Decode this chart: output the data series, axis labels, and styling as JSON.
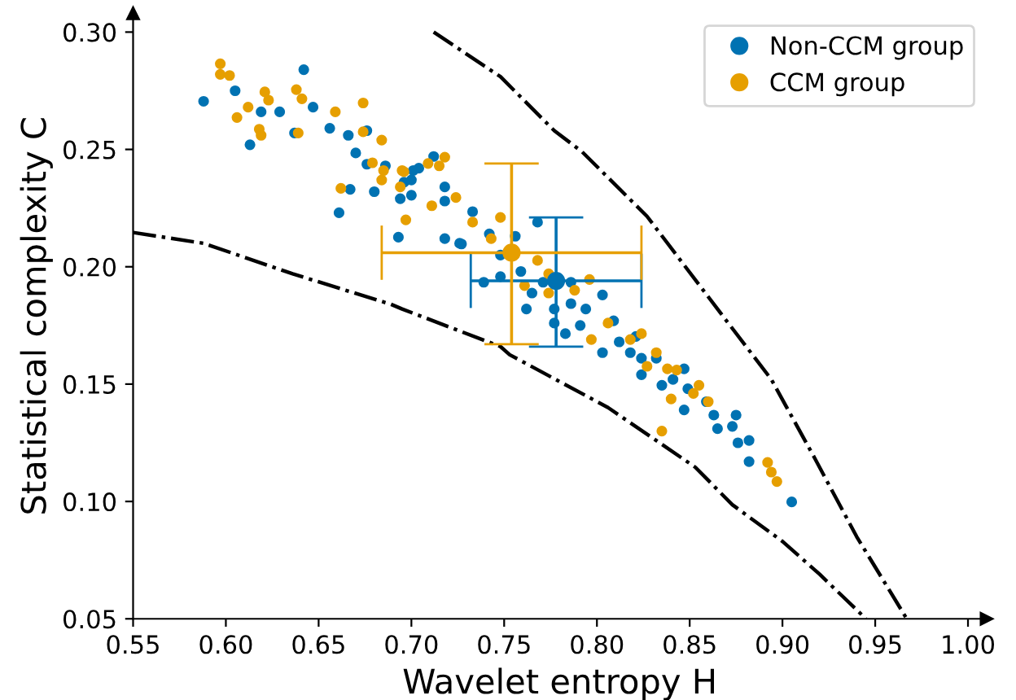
{
  "chart_data": {
    "type": "scatter",
    "xlabel": "Wavelet entropy H",
    "ylabel": "Statistical complexity C",
    "legend": "top right",
    "marker": "circle",
    "grid": false,
    "xlim": [
      0.55,
      1.01
    ],
    "ylim": [
      0.05,
      0.308
    ],
    "xticks": [
      {
        "value": 0.55,
        "label": "0.55"
      },
      {
        "value": 0.6,
        "label": "0.60"
      },
      {
        "value": 0.65,
        "label": "0.65"
      },
      {
        "value": 0.7,
        "label": "0.70"
      },
      {
        "value": 0.75,
        "label": "0.75"
      },
      {
        "value": 0.8,
        "label": "0.80"
      },
      {
        "value": 0.85,
        "label": "0.85"
      },
      {
        "value": 0.9,
        "label": "0.90"
      },
      {
        "value": 0.95,
        "label": "0.95"
      },
      {
        "value": 1.0,
        "label": "1.00"
      }
    ],
    "yticks": [
      {
        "value": 0.05,
        "label": "0.05"
      },
      {
        "value": 0.1,
        "label": "0.10"
      },
      {
        "value": 0.15,
        "label": "0.15"
      },
      {
        "value": 0.2,
        "label": "0.20"
      },
      {
        "value": 0.25,
        "label": "0.25"
      },
      {
        "value": 0.3,
        "label": "0.30"
      }
    ],
    "series": [
      {
        "type": "line",
        "color": "#000000",
        "line_style": "dashdot",
        "marker": "none",
        "x": [
          0.55,
          0.588,
          0.636,
          0.689,
          0.695,
          0.748,
          0.753,
          0.806,
          0.853,
          0.873,
          0.9,
          0.92,
          0.945
        ],
        "values": [
          0.2146,
          0.21,
          0.197,
          0.184,
          0.182,
          0.166,
          0.1625,
          0.14,
          0.1146,
          0.0986,
          0.083,
          0.069,
          0.05
        ]
      },
      {
        "type": "line",
        "color": "#000000",
        "line_style": "dashdot",
        "marker": "none",
        "x": [
          0.712,
          0.748,
          0.777,
          0.792,
          0.827,
          0.865,
          0.894,
          0.917,
          0.94,
          0.967
        ],
        "values": [
          0.3,
          0.281,
          0.258,
          0.249,
          0.2215,
          0.182,
          0.152,
          0.119,
          0.085,
          0.05
        ]
      },
      {
        "name": "Non-CCM group",
        "color": "#0072b2",
        "x": [
          0.588,
          0.642,
          0.605,
          0.619,
          0.613,
          0.629,
          0.637,
          0.647,
          0.656,
          0.666,
          0.676,
          0.67,
          0.676,
          0.661,
          0.667,
          0.68,
          0.686,
          0.693,
          0.694,
          0.7,
          0.7,
          0.704,
          0.712,
          0.718,
          0.726,
          0.696,
          0.718,
          0.733,
          0.727,
          0.742,
          0.748,
          0.739,
          0.759,
          0.765,
          0.777,
          0.777,
          0.786,
          0.794,
          0.791,
          0.803,
          0.809,
          0.812,
          0.821,
          0.824,
          0.832,
          0.841,
          0.847,
          0.849,
          0.859,
          0.847,
          0.863,
          0.865,
          0.875,
          0.873,
          0.876,
          0.882,
          0.882,
          0.905,
          0.803,
          0.756,
          0.768,
          0.718,
          0.701,
          0.786,
          0.783,
          0.824,
          0.835,
          0.818,
          0.771,
          0.748,
          0.762
        ],
        "values": [
          0.2705,
          0.284,
          0.275,
          0.266,
          0.252,
          0.266,
          0.257,
          0.268,
          0.259,
          0.256,
          0.258,
          0.2485,
          0.2437,
          0.223,
          0.233,
          0.232,
          0.243,
          0.2126,
          0.229,
          0.2305,
          0.237,
          0.242,
          0.247,
          0.212,
          0.21,
          0.236,
          0.228,
          0.2235,
          0.2097,
          0.214,
          0.205,
          0.1934,
          0.198,
          0.1888,
          0.182,
          0.176,
          0.1934,
          0.182,
          0.175,
          0.1634,
          0.177,
          0.168,
          0.1703,
          0.161,
          0.161,
          0.152,
          0.1565,
          0.148,
          0.1425,
          0.139,
          0.1368,
          0.131,
          0.1368,
          0.132,
          0.125,
          0.117,
          0.126,
          0.0998,
          0.188,
          0.213,
          0.219,
          0.234,
          0.241,
          0.1843,
          0.1715,
          0.154,
          0.1495,
          0.1634,
          0.1934,
          0.1958,
          0.182
        ]
      },
      {
        "name": "CCM group",
        "color": "#e69f00",
        "x": [
          0.597,
          0.597,
          0.602,
          0.606,
          0.612,
          0.618,
          0.619,
          0.621,
          0.623,
          0.638,
          0.641,
          0.639,
          0.659,
          0.674,
          0.674,
          0.684,
          0.679,
          0.685,
          0.684,
          0.662,
          0.694,
          0.697,
          0.696,
          0.709,
          0.715,
          0.718,
          0.711,
          0.695,
          0.724,
          0.733,
          0.748,
          0.743,
          0.768,
          0.774,
          0.761,
          0.774,
          0.788,
          0.796,
          0.797,
          0.806,
          0.818,
          0.824,
          0.832,
          0.827,
          0.838,
          0.843,
          0.852,
          0.855,
          0.84,
          0.86,
          0.835,
          0.892,
          0.894,
          0.897
        ],
        "values": [
          0.2865,
          0.282,
          0.2815,
          0.2636,
          0.268,
          0.2586,
          0.256,
          0.2745,
          0.271,
          0.2755,
          0.2716,
          0.257,
          0.266,
          0.2698,
          0.2575,
          0.254,
          0.2443,
          0.241,
          0.237,
          0.2334,
          0.234,
          0.22,
          0.2405,
          0.244,
          0.243,
          0.2467,
          0.226,
          0.241,
          0.2295,
          0.219,
          0.221,
          0.212,
          0.2027,
          0.197,
          0.192,
          0.1888,
          0.19,
          0.1946,
          0.169,
          0.176,
          0.169,
          0.1715,
          0.1634,
          0.1576,
          0.1565,
          0.156,
          0.146,
          0.1495,
          0.1437,
          0.1425,
          0.13,
          0.1166,
          0.1125,
          0.1085
        ]
      },
      {
        "color": "#0072b2",
        "x": [
          0.778
        ],
        "values": [
          0.194
        ],
        "xerrors": [
          [
            0.732,
            0.824
          ]
        ],
        "errors": [
          [
            0.166,
            0.221
          ]
        ]
      },
      {
        "color": "#e69f00",
        "x": [
          0.754
        ],
        "values": [
          0.206
        ],
        "xerrors": [
          [
            0.684,
            0.824
          ]
        ],
        "errors": [
          [
            0.167,
            0.244
          ]
        ]
      }
    ]
  }
}
